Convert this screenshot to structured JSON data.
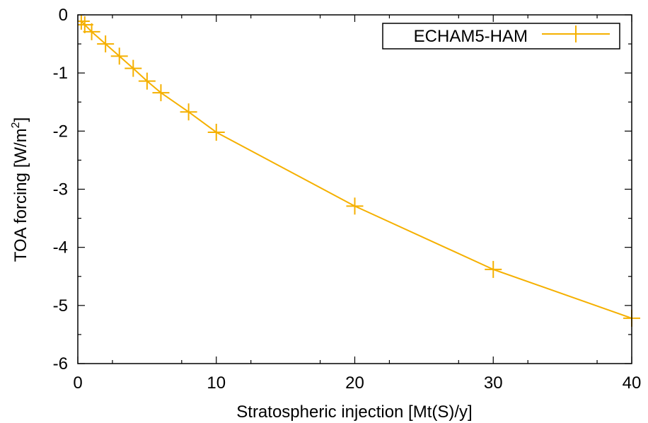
{
  "chart_data": {
    "type": "line",
    "xlabel": "Stratospheric injection [Mt(S)/y]",
    "ylabel": {
      "prefix": "TOA forcing [W/m",
      "sup": "2",
      "suffix": "]"
    },
    "xlim": [
      0,
      40
    ],
    "ylim": [
      -6,
      0
    ],
    "xticks": [
      0,
      10,
      20,
      30,
      40
    ],
    "yticks": [
      0,
      -1,
      -2,
      -3,
      -4,
      -5,
      -6
    ],
    "grid": false,
    "legend_position": "top-right",
    "series": [
      {
        "name": "ECHAM5-HAM",
        "color": "#f5b000",
        "marker": "plus",
        "x": [
          0.25,
          0.5,
          1,
          2,
          3,
          4,
          5,
          6,
          8,
          10,
          20,
          30,
          40
        ],
        "y": [
          -0.11,
          -0.17,
          -0.29,
          -0.5,
          -0.71,
          -0.92,
          -1.14,
          -1.34,
          -1.67,
          -2.02,
          -3.29,
          -4.38,
          -5.22
        ]
      }
    ]
  }
}
